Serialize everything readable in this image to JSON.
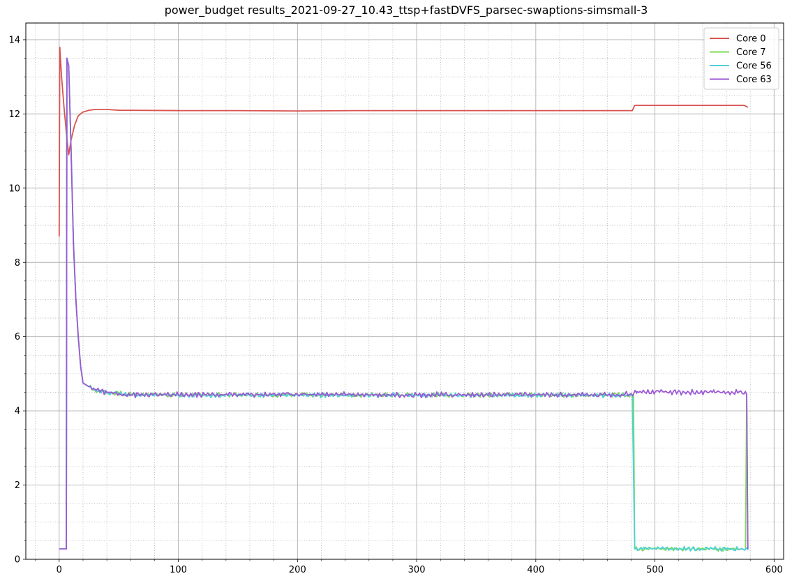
{
  "chart_data": {
    "type": "line",
    "title": "power_budget results_2021-09-27_10.43_ttsp+fastDVFS_parsec-swaptions-simsmall-3",
    "xlabel": "",
    "ylabel": "",
    "xlim": [
      -28,
      608
    ],
    "ylim": [
      0,
      14.45
    ],
    "xticks": [
      0,
      100,
      200,
      300,
      400,
      500,
      600
    ],
    "yticks": [
      0,
      2,
      4,
      6,
      8,
      10,
      12,
      14
    ],
    "xtick_labels": [
      "0",
      "100",
      "200",
      "300",
      "400",
      "500",
      "600"
    ],
    "ytick_labels": [
      "0",
      "2",
      "4",
      "6",
      "8",
      "10",
      "12",
      "14"
    ],
    "grid": "major solid, minor dotted",
    "legend_position": "top-right",
    "series": [
      {
        "name": "Core 0",
        "color": "#d9534f",
        "points": [
          [
            0,
            8.7
          ],
          [
            0.5,
            13.8
          ],
          [
            2,
            13.0
          ],
          [
            4,
            12.2
          ],
          [
            6,
            11.5
          ],
          [
            8,
            10.9
          ],
          [
            10,
            11.3
          ],
          [
            13,
            11.7
          ],
          [
            16,
            11.95
          ],
          [
            20,
            12.05
          ],
          [
            25,
            12.1
          ],
          [
            30,
            12.12
          ],
          [
            40,
            12.12
          ],
          [
            50,
            12.1
          ],
          [
            100,
            12.09
          ],
          [
            150,
            12.09
          ],
          [
            200,
            12.08
          ],
          [
            250,
            12.09
          ],
          [
            300,
            12.09
          ],
          [
            350,
            12.09
          ],
          [
            400,
            12.09
          ],
          [
            450,
            12.09
          ],
          [
            481,
            12.09
          ],
          [
            483,
            12.23
          ],
          [
            500,
            12.23
          ],
          [
            550,
            12.23
          ],
          [
            575,
            12.23
          ],
          [
            578,
            12.18
          ]
        ]
      },
      {
        "name": "Core 7",
        "color": "#7ed957",
        "noise": 0.07,
        "points": [
          [
            0,
            0.28
          ],
          [
            6,
            0.28
          ],
          [
            6.5,
            13.5
          ],
          [
            8,
            13.3
          ],
          [
            10,
            11.0
          ],
          [
            12,
            8.5
          ],
          [
            14,
            7.0
          ],
          [
            16,
            6.0
          ],
          [
            18,
            5.2
          ],
          [
            20,
            4.75
          ],
          [
            25,
            4.65
          ],
          [
            30,
            4.55
          ],
          [
            40,
            4.5
          ],
          [
            60,
            4.45
          ],
          [
            100,
            4.43
          ],
          [
            200,
            4.43
          ],
          [
            300,
            4.43
          ],
          [
            400,
            4.43
          ],
          [
            450,
            4.43
          ],
          [
            482,
            4.43
          ],
          [
            483,
            0.28
          ],
          [
            576,
            0.28
          ],
          [
            577,
            4.45
          ],
          [
            578,
            0.28
          ]
        ]
      },
      {
        "name": "Core 56",
        "color": "#4fd1d9",
        "noise": 0.07,
        "points": [
          [
            0,
            0.28
          ],
          [
            6,
            0.28
          ],
          [
            6.5,
            13.5
          ],
          [
            8,
            13.3
          ],
          [
            10,
            11.0
          ],
          [
            12,
            8.5
          ],
          [
            14,
            7.0
          ],
          [
            16,
            6.0
          ],
          [
            18,
            5.2
          ],
          [
            20,
            4.75
          ],
          [
            25,
            4.65
          ],
          [
            30,
            4.55
          ],
          [
            40,
            4.5
          ],
          [
            60,
            4.43
          ],
          [
            100,
            4.42
          ],
          [
            200,
            4.42
          ],
          [
            300,
            4.42
          ],
          [
            400,
            4.42
          ],
          [
            450,
            4.42
          ],
          [
            481,
            4.42
          ],
          [
            483,
            0.28
          ],
          [
            578,
            0.28
          ]
        ]
      },
      {
        "name": "Core 63",
        "color": "#9b59d6",
        "noise": 0.08,
        "points": [
          [
            0,
            0.28
          ],
          [
            6,
            0.28
          ],
          [
            6.5,
            13.5
          ],
          [
            8,
            13.3
          ],
          [
            10,
            11.0
          ],
          [
            12,
            8.5
          ],
          [
            14,
            7.0
          ],
          [
            16,
            6.0
          ],
          [
            18,
            5.2
          ],
          [
            20,
            4.75
          ],
          [
            25,
            4.65
          ],
          [
            30,
            4.58
          ],
          [
            40,
            4.5
          ],
          [
            60,
            4.43
          ],
          [
            100,
            4.43
          ],
          [
            200,
            4.45
          ],
          [
            300,
            4.43
          ],
          [
            400,
            4.43
          ],
          [
            450,
            4.43
          ],
          [
            482,
            4.45
          ],
          [
            485,
            4.52
          ],
          [
            500,
            4.5
          ],
          [
            550,
            4.5
          ],
          [
            576,
            4.5
          ],
          [
            577,
            4.45
          ],
          [
            578,
            0.28
          ]
        ]
      }
    ]
  }
}
